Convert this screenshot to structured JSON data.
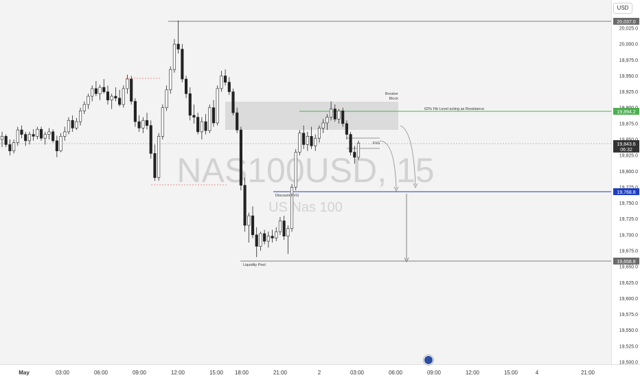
{
  "header": {
    "currency": "USD"
  },
  "watermark": {
    "symbol": "NAS100USD, 15",
    "name": "US Nas 100"
  },
  "annotations": {
    "breaker_block": "Breaker\nBlock",
    "fib_level": "62% Fib Level acting as Resistance",
    "fvg": "FVG",
    "discount_fvg": "Discount FVG",
    "liquidity_pool": "Liquidity Pool"
  },
  "price_labels": {
    "high": "20,037.0",
    "fib": "19,894.2",
    "current": "19,843.6",
    "countdown": "06:32",
    "discount": "19,768.8",
    "low": "19,658.8"
  },
  "colors": {
    "up": "#ffffff",
    "down": "#222222",
    "fib_line": "#4caf50",
    "discount_line": "#1e3fbf",
    "zone": "#d6d6d6",
    "red_dotted": "#e57373"
  },
  "chart_data": {
    "type": "candlestick",
    "symbol": "NAS100USD",
    "timeframe": "15",
    "ylim": [
      19500,
      20055
    ],
    "y_ticks": [
      19500,
      19525,
      19550,
      19575,
      19600,
      19625,
      19650,
      19675,
      19700,
      19725,
      19750,
      19775,
      19800,
      19825,
      19850,
      19875,
      19900,
      19925,
      19950,
      19975,
      20000,
      20025
    ],
    "y_tick_labels": [
      "19,500.0",
      "19,525.0",
      "19,550.0",
      "19,575.0",
      "19,600.0",
      "19,625.0",
      "19,650.0",
      "19,675.0",
      "19,700.0",
      "19,725.0",
      "19,750.0",
      "19,775.0",
      "19,800.0",
      "19,825.0",
      "19,850.0",
      "19,875.0",
      "19,900.0",
      "19,925.0",
      "19,950.0",
      "19,975.0",
      "20,000.0",
      "20,025.0"
    ],
    "x_tick_labels": [
      "May",
      "03:00",
      "06:00",
      "09:00",
      "12:00",
      "15:00",
      "18:00",
      "21:00",
      "2",
      "03:00",
      "06:00",
      "09:00",
      "12:00",
      "15:00",
      "4",
      "21:00"
    ],
    "levels": {
      "high": 20037.0,
      "fib": 19894.2,
      "current": 19843.6,
      "discount": 19768.8,
      "low": 19658.8
    },
    "candles": [
      [
        19850,
        19862,
        19838,
        19855
      ],
      [
        19855,
        19858,
        19838,
        19842
      ],
      [
        19842,
        19850,
        19825,
        19832
      ],
      [
        19832,
        19850,
        19828,
        19845
      ],
      [
        19845,
        19870,
        19840,
        19865
      ],
      [
        19865,
        19872,
        19852,
        19858
      ],
      [
        19858,
        19862,
        19840,
        19848
      ],
      [
        19848,
        19862,
        19842,
        19858
      ],
      [
        19858,
        19866,
        19848,
        19855
      ],
      [
        19855,
        19870,
        19850,
        19866
      ],
      [
        19866,
        19870,
        19848,
        19852
      ],
      [
        19852,
        19862,
        19842,
        19858
      ],
      [
        19858,
        19868,
        19850,
        19862
      ],
      [
        19862,
        19866,
        19845,
        19848
      ],
      [
        19848,
        19856,
        19822,
        19832
      ],
      [
        19832,
        19860,
        19830,
        19855
      ],
      [
        19855,
        19870,
        19848,
        19862
      ],
      [
        19862,
        19885,
        19858,
        19880
      ],
      [
        19880,
        19888,
        19862,
        19868
      ],
      [
        19868,
        19884,
        19865,
        19878
      ],
      [
        19878,
        19900,
        19872,
        19895
      ],
      [
        19895,
        19910,
        19890,
        19905
      ],
      [
        19905,
        19922,
        19898,
        19918
      ],
      [
        19918,
        19935,
        19910,
        19930
      ],
      [
        19930,
        19942,
        19918,
        19922
      ],
      [
        19922,
        19936,
        19912,
        19932
      ],
      [
        19932,
        19945,
        19922,
        19925
      ],
      [
        19925,
        19935,
        19905,
        19912
      ],
      [
        19912,
        19922,
        19898,
        19918
      ],
      [
        19918,
        19932,
        19910,
        19915
      ],
      [
        19915,
        19928,
        19902,
        19905
      ],
      [
        19905,
        19935,
        19900,
        19930
      ],
      [
        19930,
        19952,
        19922,
        19945
      ],
      [
        19945,
        19950,
        19905,
        19910
      ],
      [
        19910,
        19915,
        19870,
        19878
      ],
      [
        19878,
        19888,
        19862,
        19868
      ],
      [
        19868,
        19885,
        19860,
        19880
      ],
      [
        19880,
        19892,
        19866,
        19872
      ],
      [
        19872,
        19880,
        19820,
        19828
      ],
      [
        19828,
        19842,
        19785,
        19790
      ],
      [
        19790,
        19860,
        19785,
        19855
      ],
      [
        19855,
        19905,
        19850,
        19900
      ],
      [
        19900,
        19935,
        19895,
        19928
      ],
      [
        19928,
        19965,
        19922,
        19960
      ],
      [
        19960,
        20008,
        19955,
        20000
      ],
      [
        20000,
        20037,
        19985,
        19992
      ],
      [
        19992,
        20000,
        19940,
        19945
      ],
      [
        19945,
        19950,
        19915,
        19922
      ],
      [
        19922,
        19932,
        19880,
        19888
      ],
      [
        19888,
        19905,
        19875,
        19885
      ],
      [
        19885,
        19892,
        19858,
        19862
      ],
      [
        19862,
        19885,
        19850,
        19878
      ],
      [
        19878,
        19890,
        19858,
        19864
      ],
      [
        19864,
        19905,
        19860,
        19900
      ],
      [
        19900,
        19912,
        19870,
        19876
      ],
      [
        19876,
        19935,
        19872,
        19930
      ],
      [
        19930,
        19958,
        19925,
        19950
      ],
      [
        19950,
        19960,
        19935,
        19940
      ],
      [
        19940,
        19948,
        19920,
        19925
      ],
      [
        19925,
        19930,
        19888,
        19892
      ],
      [
        19892,
        19900,
        19860,
        19865
      ],
      [
        19865,
        19870,
        19770,
        19778
      ],
      [
        19778,
        19790,
        19705,
        19715
      ],
      [
        19715,
        19735,
        19688,
        19730
      ],
      [
        19730,
        19745,
        19695,
        19700
      ],
      [
        19700,
        19712,
        19665,
        19682
      ],
      [
        19682,
        19705,
        19675,
        19702
      ],
      [
        19702,
        19708,
        19685,
        19690
      ],
      [
        19690,
        19705,
        19680,
        19698
      ],
      [
        19698,
        19708,
        19688,
        19695
      ],
      [
        19695,
        19712,
        19690,
        19705
      ],
      [
        19705,
        19728,
        19700,
        19722
      ],
      [
        19722,
        19730,
        19692,
        19698
      ],
      [
        19698,
        19715,
        19670,
        19710
      ],
      [
        19710,
        19780,
        19705,
        19775
      ],
      [
        19775,
        19835,
        19770,
        19830
      ],
      [
        19830,
        19865,
        19825,
        19860
      ],
      [
        19860,
        19872,
        19835,
        19842
      ],
      [
        19842,
        19862,
        19832,
        19855
      ],
      [
        19855,
        19870,
        19835,
        19840
      ],
      [
        19840,
        19858,
        19832,
        19852
      ],
      [
        19852,
        19872,
        19845,
        19868
      ],
      [
        19868,
        19882,
        19860,
        19876
      ],
      [
        19876,
        19890,
        19865,
        19885
      ],
      [
        19885,
        19910,
        19880,
        19898
      ],
      [
        19898,
        19905,
        19878,
        19882
      ],
      [
        19882,
        19898,
        19875,
        19895
      ],
      [
        19895,
        19900,
        19870,
        19875
      ],
      [
        19875,
        19880,
        19850,
        19858
      ],
      [
        19858,
        19862,
        19825,
        19830
      ],
      [
        19830,
        19840,
        19812,
        19822
      ],
      [
        19822,
        19848,
        19818,
        19844
      ]
    ]
  }
}
